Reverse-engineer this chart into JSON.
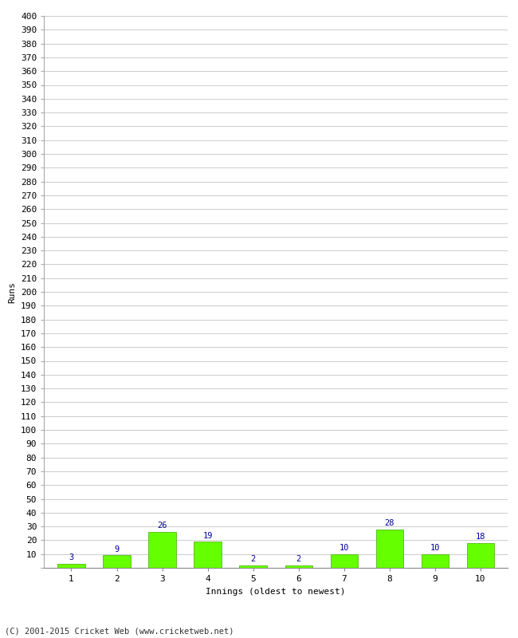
{
  "xlabel": "Innings (oldest to newest)",
  "ylabel": "Runs",
  "categories": [
    "1",
    "2",
    "3",
    "4",
    "5",
    "6",
    "7",
    "8",
    "9",
    "10"
  ],
  "values": [
    3,
    9,
    26,
    19,
    2,
    2,
    10,
    28,
    10,
    18
  ],
  "bar_color": "#66ff00",
  "bar_edge_color": "#44aa00",
  "value_label_color": "#000099",
  "ylim": [
    0,
    400
  ],
  "ytick_step": 10,
  "background_color": "#ffffff",
  "grid_color": "#cccccc",
  "footer_text": "(C) 2001-2015 Cricket Web (www.cricketweb.net)",
  "value_fontsize": 7.5,
  "axis_fontsize": 8,
  "ylabel_fontsize": 8,
  "xlabel_fontsize": 8,
  "footer_fontsize": 7.5
}
